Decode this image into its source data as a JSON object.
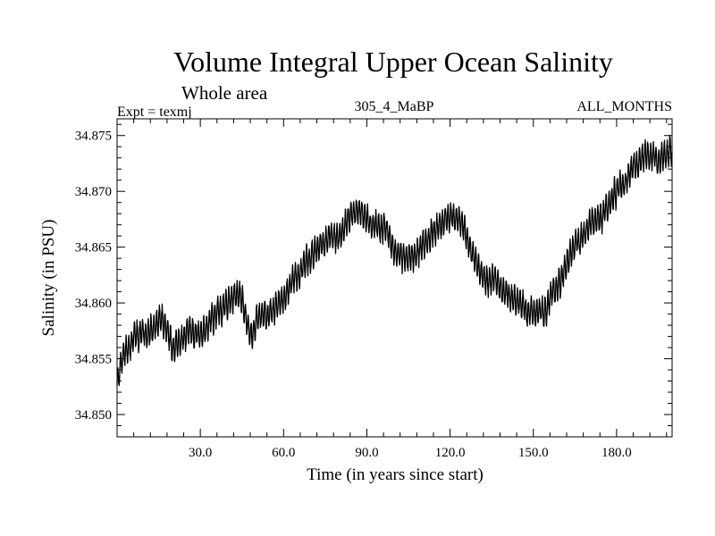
{
  "chart_data": {
    "type": "line",
    "title": "Volume Integral Upper Ocean Salinity",
    "subtitle": "Whole area",
    "experiment_label": "Expt = texmj",
    "run_label": "305_4_MaBP",
    "months_label": "ALL_MONTHS",
    "xlabel": "Time (in years since start)",
    "ylabel": "Salinity (in PSU)",
    "xlim": [
      0,
      200
    ],
    "ylim": [
      34.848,
      34.8765
    ],
    "x_ticks": [
      30,
      60,
      90,
      120,
      150,
      180
    ],
    "x_tick_labels": [
      "30.0",
      "60.0",
      "90.0",
      "120.0",
      "150.0",
      "180.0"
    ],
    "y_ticks": [
      34.85,
      34.855,
      34.86,
      34.865,
      34.87,
      34.875
    ],
    "y_tick_labels": [
      "34.850",
      "34.855",
      "34.860",
      "34.865",
      "34.870",
      "34.875"
    ],
    "seasonal_amplitude": 0.0011,
    "series": [
      {
        "name": "Salinity",
        "x": [
          0,
          2,
          5,
          8,
          12,
          16,
          20,
          25,
          30,
          35,
          40,
          43,
          46,
          48,
          50,
          55,
          60,
          65,
          70,
          75,
          80,
          85,
          88,
          92,
          97,
          100,
          104,
          108,
          112,
          116,
          120,
          124,
          128,
          132,
          136,
          140,
          145,
          150,
          155,
          160,
          165,
          170,
          175,
          180,
          185,
          190,
          195,
          200
        ],
        "values": [
          34.8525,
          34.855,
          34.8565,
          34.857,
          34.8575,
          34.8585,
          34.856,
          34.8575,
          34.857,
          34.859,
          34.86,
          34.861,
          34.8595,
          34.8565,
          34.8585,
          34.859,
          34.8605,
          34.8625,
          34.864,
          34.8655,
          34.866,
          34.868,
          34.8685,
          34.867,
          34.8665,
          34.8645,
          34.864,
          34.8645,
          34.8655,
          34.867,
          34.868,
          34.8675,
          34.864,
          34.8625,
          34.862,
          34.861,
          34.86,
          34.859,
          34.86,
          34.862,
          34.8655,
          34.8665,
          34.868,
          34.87,
          34.872,
          34.8735,
          34.8728,
          34.874
        ]
      }
    ]
  }
}
